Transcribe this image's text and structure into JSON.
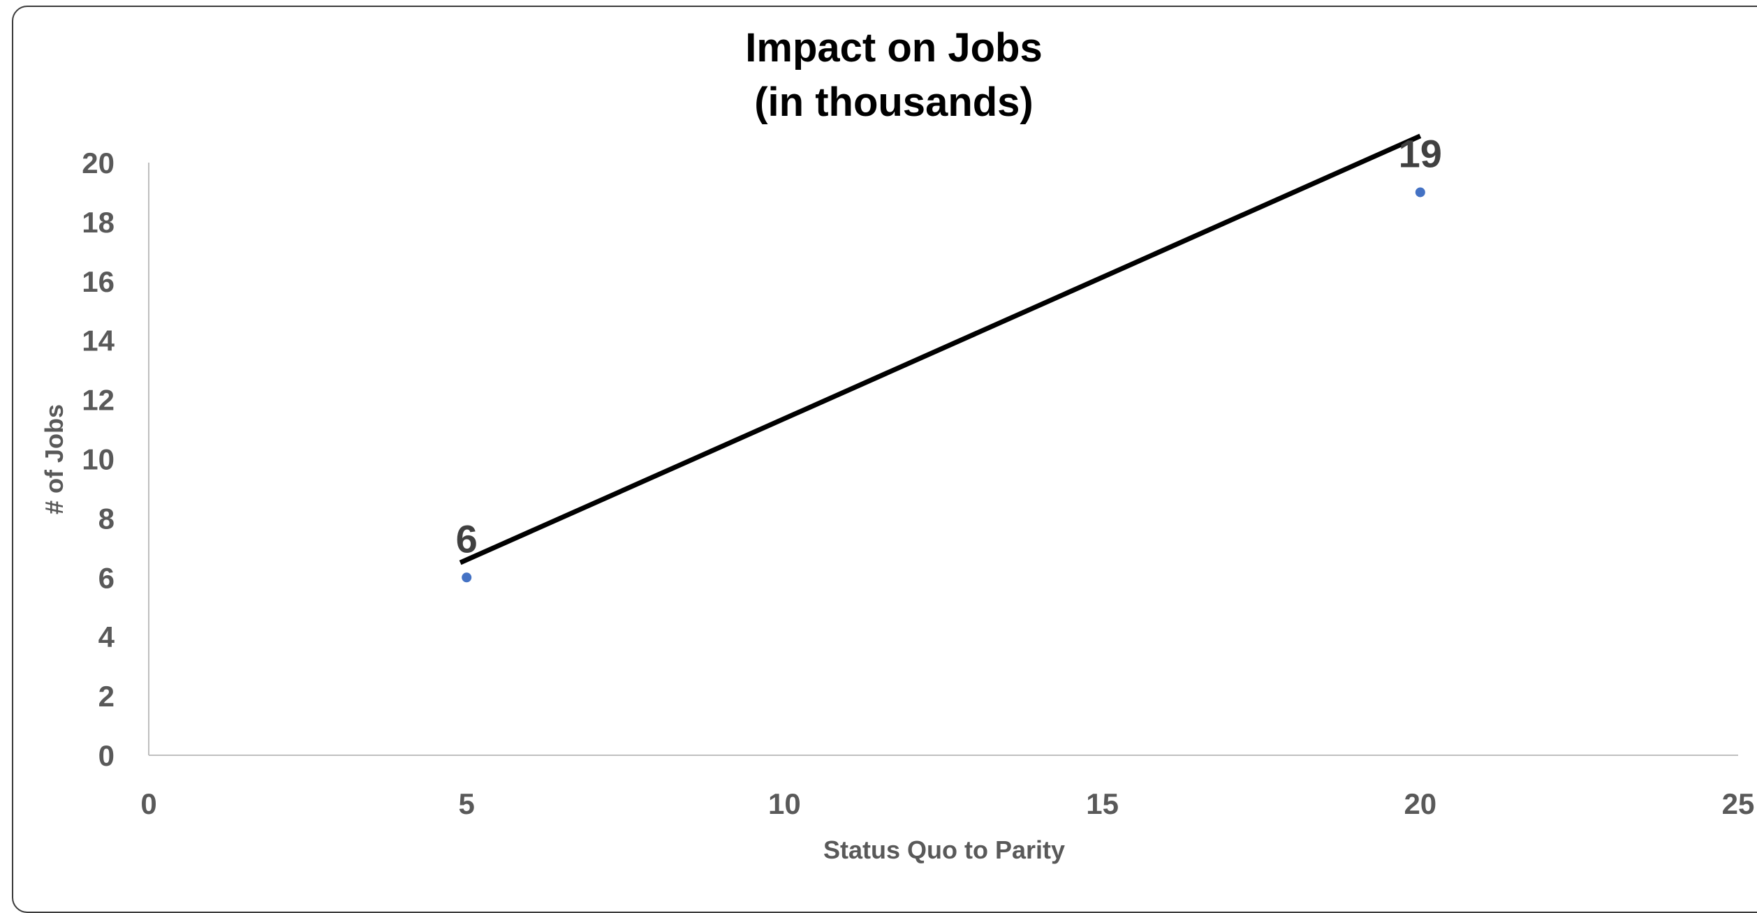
{
  "chart_data": {
    "type": "scatter",
    "title": "Impact on Jobs",
    "subtitle": "(in thousands)",
    "xlabel": "Status Quo to Parity",
    "ylabel": "# of Jobs",
    "xlim": [
      0,
      25
    ],
    "ylim": [
      0,
      20
    ],
    "x_ticks": [
      0,
      5,
      10,
      15,
      20,
      25
    ],
    "y_ticks": [
      0,
      2,
      4,
      6,
      8,
      10,
      12,
      14,
      16,
      18,
      20
    ],
    "grid": false,
    "legend": "none",
    "series": [
      {
        "color": "#4472C4",
        "points": [
          {
            "x": 5,
            "y": 6,
            "label": "6"
          },
          {
            "x": 20,
            "y": 19,
            "label": "19"
          }
        ]
      }
    ],
    "trendline": {
      "type": "linear",
      "color": "#000000",
      "from": {
        "x": 4.9,
        "y": 6.5
      },
      "to": {
        "x": 20,
        "y": 20.9
      }
    },
    "colors": {
      "axis": "#bfbfbf",
      "tick_text": "#595959",
      "title": "#000000",
      "frame": "#3a3a3a"
    }
  }
}
